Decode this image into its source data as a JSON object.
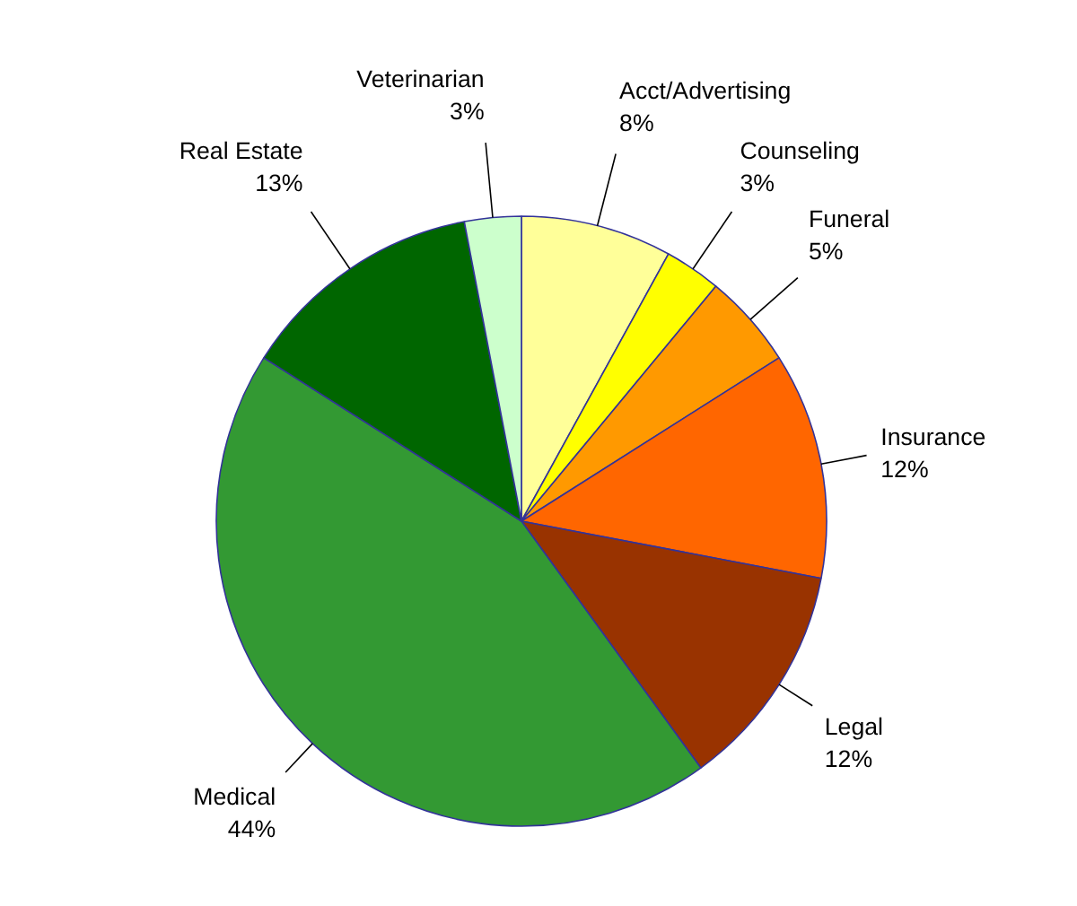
{
  "chart_data": {
    "type": "pie",
    "categories": [
      "Acct/Advertising",
      "Counseling",
      "Funeral",
      "Insurance",
      "Legal",
      "Medical",
      "Real Estate",
      "Veterinarian"
    ],
    "values": [
      8,
      3,
      5,
      12,
      12,
      44,
      13,
      3
    ],
    "value_labels": [
      "8%",
      "3%",
      "5%",
      "12%",
      "12%",
      "44%",
      "13%",
      "3%"
    ],
    "colors": [
      "#ffff99",
      "#ffff00",
      "#ff9900",
      "#ff6600",
      "#993300",
      "#339933",
      "#006600",
      "#ccffcc"
    ]
  }
}
